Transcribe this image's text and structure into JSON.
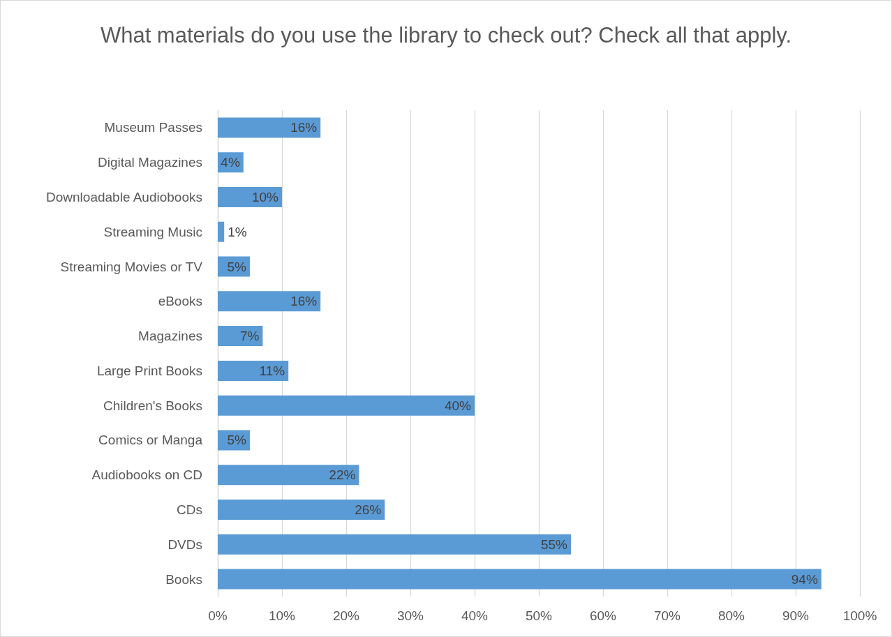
{
  "chart_data": {
    "type": "bar",
    "orientation": "horizontal",
    "title": "What materials do you use the library to check out? Check all that apply.",
    "categories": [
      "Museum Passes",
      "Digital Magazines",
      "Downloadable Audiobooks",
      "Streaming Music",
      "Streaming Movies or TV",
      "eBooks",
      "Magazines",
      "Large Print Books",
      "Children's Books",
      "Comics or Manga",
      "Audiobooks on CD",
      "CDs",
      "DVDs",
      "Books"
    ],
    "values": [
      16,
      4,
      10,
      1,
      5,
      16,
      7,
      11,
      40,
      5,
      22,
      26,
      55,
      94
    ],
    "value_labels": [
      "16%",
      "4%",
      "10%",
      "1%",
      "5%",
      "16%",
      "7%",
      "11%",
      "40%",
      "5%",
      "22%",
      "26%",
      "55%",
      "94%"
    ],
    "color": "#5b9bd5",
    "xlim": [
      0,
      100
    ],
    "xticks": [
      {
        "value": 0,
        "label": "0%"
      },
      {
        "value": 10,
        "label": "10%"
      },
      {
        "value": 20,
        "label": "20%"
      },
      {
        "value": 30,
        "label": "30%"
      },
      {
        "value": 40,
        "label": "40%"
      },
      {
        "value": 50,
        "label": "50%"
      },
      {
        "value": 60,
        "label": "60%"
      },
      {
        "value": 70,
        "label": "70%"
      },
      {
        "value": 80,
        "label": "80%"
      },
      {
        "value": 90,
        "label": "90%"
      },
      {
        "value": 100,
        "label": "100%"
      }
    ],
    "grid": "x"
  }
}
